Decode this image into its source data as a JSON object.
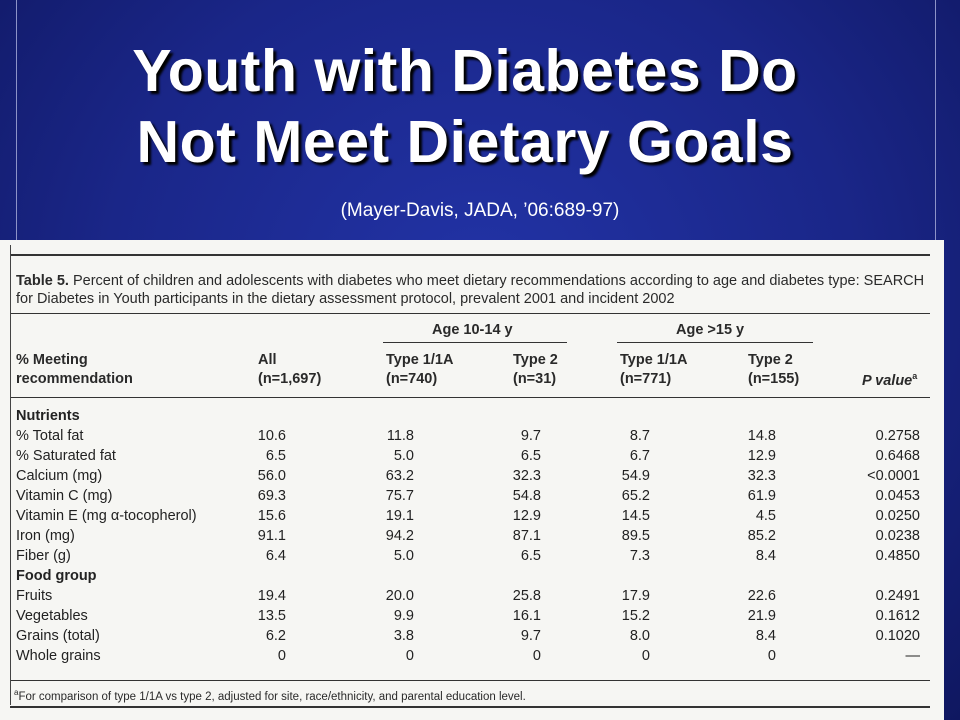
{
  "slide": {
    "title_line1": "Youth with Diabetes Do",
    "title_line2": "Not Meet Dietary Goals",
    "citation": "(Mayer-Davis, JADA, ’06:689-97)"
  },
  "table": {
    "caption_label": "Table 5.",
    "caption_text": "Percent of children and adolescents with diabetes who meet dietary recommendations according to age and diabetes type: SEARCH for Diabetes in Youth participants in the dietary assessment protocol, prevalent 2001 and incident 2002",
    "group_age_1014": "Age 10-14 y",
    "group_age_15": "Age >15 y",
    "header_row_label_1": "% Meeting",
    "header_row_label_2": "recommendation",
    "col_all_1": "All",
    "col_all_2": "(n=1,697)",
    "col_t1a_1014_1": "Type 1/1A",
    "col_t1a_1014_2": "(n=740)",
    "col_t2_1014_1": "Type 2",
    "col_t2_1014_2": "(n=31)",
    "col_t1a_15_1": "Type 1/1A",
    "col_t1a_15_2": "(n=771)",
    "col_t2_15_1": "Type 2",
    "col_t2_15_2": "(n=155)",
    "col_p": "P value",
    "col_p_sup": "a",
    "section_nutrients": "Nutrients",
    "section_food": "Food group",
    "nutrients": [
      {
        "label": "% Total fat",
        "all": "10.6",
        "a": "11.8",
        "b": "9.7",
        "c": "8.7",
        "d": "14.8",
        "p": "0.2758"
      },
      {
        "label": "% Saturated fat",
        "all": "6.5",
        "a": "5.0",
        "b": "6.5",
        "c": "6.7",
        "d": "12.9",
        "p": "0.6468"
      },
      {
        "label": "Calcium (mg)",
        "all": "56.0",
        "a": "63.2",
        "b": "32.3",
        "c": "54.9",
        "d": "32.3",
        "p": "<0.0001"
      },
      {
        "label": "Vitamin C (mg)",
        "all": "69.3",
        "a": "75.7",
        "b": "54.8",
        "c": "65.2",
        "d": "61.9",
        "p": "0.0453"
      },
      {
        "label": "Vitamin E (mg α-tocopherol)",
        "all": "15.6",
        "a": "19.1",
        "b": "12.9",
        "c": "14.5",
        "d": "4.5",
        "p": "0.0250"
      },
      {
        "label": "Iron (mg)",
        "all": "91.1",
        "a": "94.2",
        "b": "87.1",
        "c": "89.5",
        "d": "85.2",
        "p": "0.0238"
      },
      {
        "label": "Fiber (g)",
        "all": "6.4",
        "a": "5.0",
        "b": "6.5",
        "c": "7.3",
        "d": "8.4",
        "p": "0.4850"
      }
    ],
    "food": [
      {
        "label": "Fruits",
        "all": "19.4",
        "a": "20.0",
        "b": "25.8",
        "c": "17.9",
        "d": "22.6",
        "p": "0.2491"
      },
      {
        "label": "Vegetables",
        "all": "13.5",
        "a": "9.9",
        "b": "16.1",
        "c": "15.2",
        "d": "21.9",
        "p": "0.1612"
      },
      {
        "label": "Grains (total)",
        "all": "6.2",
        "a": "3.8",
        "b": "9.7",
        "c": "8.0",
        "d": "8.4",
        "p": "0.1020"
      },
      {
        "label": "Whole grains",
        "all": "0",
        "a": "0",
        "b": "0",
        "c": "0",
        "d": "0",
        "p": "—"
      }
    ],
    "footnote_sup": "a",
    "footnote": "For comparison of type 1/1A vs type 2, adjusted for site, race/ethnicity, and parental education level."
  }
}
